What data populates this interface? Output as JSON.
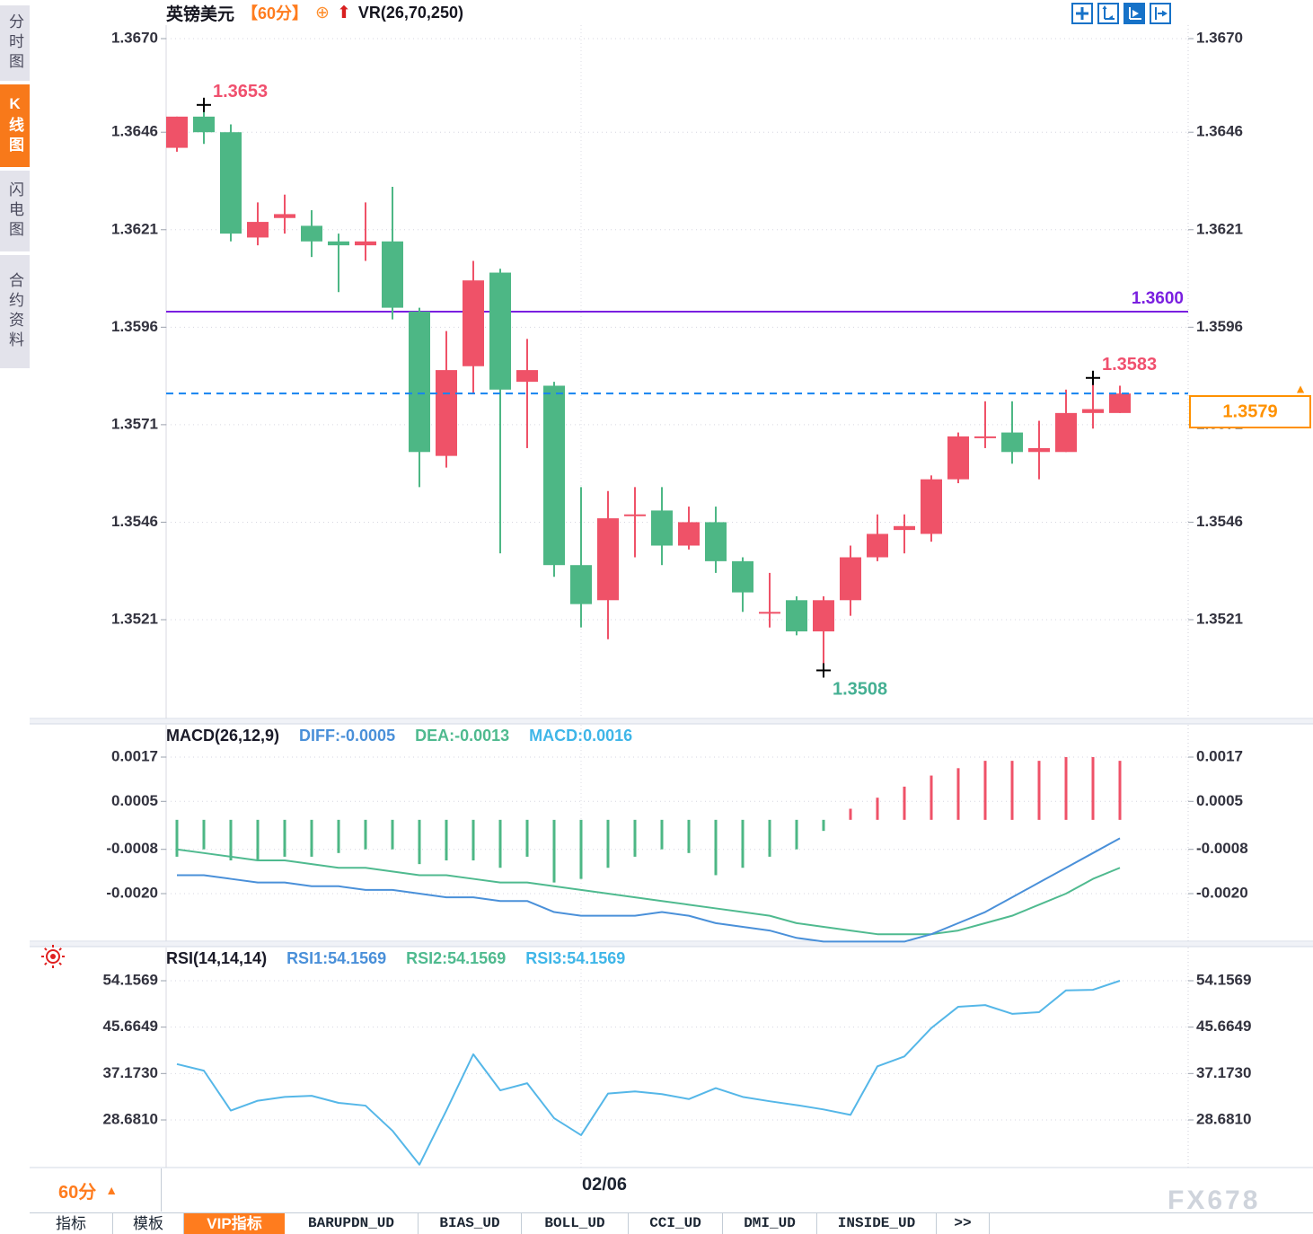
{
  "header": {
    "symbol": "英镑美元",
    "period": "【60分】",
    "indicator_label": "VR(26,70,250)"
  },
  "sidebar": {
    "items": [
      {
        "label": "分时图",
        "active": false
      },
      {
        "label": "K线图",
        "active": true
      },
      {
        "label": "闪电图",
        "active": false
      },
      {
        "label": "合约资料",
        "active": false
      }
    ]
  },
  "toolbar": {
    "icons": [
      "crosshair-icon",
      "axis-scale-icon",
      "auto-scale-icon",
      "pan-right-icon"
    ]
  },
  "panels": {
    "macd": {
      "title": "MACD(26,12,9)",
      "diff_label": "DIFF:-0.0005",
      "dea_label": "DEA:-0.0013",
      "macd_label": "MACD:0.0016"
    },
    "rsi": {
      "title": "RSI(14,14,14)",
      "rsi1_label": "RSI1:54.1569",
      "rsi2_label": "RSI2:54.1569",
      "rsi3_label": "RSI3:54.1569"
    }
  },
  "footer": {
    "period_button": "60分",
    "date_label": "02/06",
    "tabs": [
      {
        "label": "指标",
        "active": false,
        "mono": false
      },
      {
        "label": "模板",
        "active": false,
        "mono": false
      },
      {
        "label": "VIP指标",
        "active": true,
        "mono": false
      },
      {
        "label": "BARUPDN_UD",
        "active": false,
        "mono": true
      },
      {
        "label": "BIAS_UD",
        "active": false,
        "mono": true
      },
      {
        "label": "BOLL_UD",
        "active": false,
        "mono": true
      },
      {
        "label": "CCI_UD",
        "active": false,
        "mono": true
      },
      {
        "label": "DMI_UD",
        "active": false,
        "mono": true
      },
      {
        "label": "INSIDE_UD",
        "active": false,
        "mono": true
      },
      {
        "label": ">>",
        "active": false,
        "mono": true
      }
    ]
  },
  "watermark": "FX678",
  "colors": {
    "up": "#ef5268",
    "down": "#4db785",
    "accent_orange": "#ff7c1e",
    "purple_line": "#7a1fe0",
    "dashed_blue": "#1584f0",
    "diff_blue": "#4a90d9",
    "dea_green": "#4fba8f",
    "macd_cyan": "#3fb6e8",
    "rsi_line": "#55b7e8",
    "tag_orange": "#ff9100",
    "toolbar_blue": "#1672c8",
    "marker_red": "#f0506e",
    "marker_green": "#45b093"
  },
  "chart_data": [
    {
      "type": "candlestick",
      "title": "英镑美元 60分",
      "y_ticks": [
        1.367,
        1.3646,
        1.3621,
        1.3596,
        1.3571,
        1.3546,
        1.3521
      ],
      "ylim": [
        1.367,
        1.3521
      ],
      "candles_ochl": [
        [
          1.3642,
          1.365,
          1.365,
          1.3641
        ],
        [
          1.365,
          1.3646,
          1.3653,
          1.3643
        ],
        [
          1.3646,
          1.362,
          1.3648,
          1.3618
        ],
        [
          1.3619,
          1.3623,
          1.3628,
          1.3617
        ],
        [
          1.3624,
          1.3625,
          1.363,
          1.362
        ],
        [
          1.3622,
          1.3618,
          1.3626,
          1.3614
        ],
        [
          1.3618,
          1.3617,
          1.362,
          1.3605
        ],
        [
          1.3617,
          1.3618,
          1.3628,
          1.3613
        ],
        [
          1.3618,
          1.3601,
          1.3632,
          1.3598
        ],
        [
          1.36,
          1.3564,
          1.3601,
          1.3555
        ],
        [
          1.3563,
          1.3585,
          1.3595,
          1.356
        ],
        [
          1.3586,
          1.3608,
          1.3613,
          1.3579
        ],
        [
          1.361,
          1.358,
          1.3611,
          1.3538
        ],
        [
          1.3582,
          1.3585,
          1.3593,
          1.3565
        ],
        [
          1.3581,
          1.3535,
          1.3582,
          1.3532
        ],
        [
          1.3535,
          1.3525,
          1.3555,
          1.3519
        ],
        [
          1.3526,
          1.3547,
          1.3554,
          1.3516
        ],
        [
          1.3548,
          1.3548,
          1.3555,
          1.3537
        ],
        [
          1.3549,
          1.354,
          1.3555,
          1.3535
        ],
        [
          1.354,
          1.3546,
          1.355,
          1.3539
        ],
        [
          1.3546,
          1.3536,
          1.355,
          1.3533
        ],
        [
          1.3536,
          1.3528,
          1.3537,
          1.3523
        ],
        [
          1.3523,
          1.3523,
          1.3533,
          1.3519
        ],
        [
          1.3526,
          1.3518,
          1.3527,
          1.3517
        ],
        [
          1.3518,
          1.3526,
          1.3527,
          1.3508
        ],
        [
          1.3526,
          1.3537,
          1.354,
          1.3522
        ],
        [
          1.3537,
          1.3543,
          1.3548,
          1.3536
        ],
        [
          1.3544,
          1.3545,
          1.3548,
          1.3538
        ],
        [
          1.3543,
          1.3557,
          1.3558,
          1.3541
        ],
        [
          1.3557,
          1.3568,
          1.3569,
          1.3556
        ],
        [
          1.3568,
          1.3568,
          1.3577,
          1.3565
        ],
        [
          1.3569,
          1.3564,
          1.3577,
          1.3561
        ],
        [
          1.3564,
          1.3565,
          1.3572,
          1.3557
        ],
        [
          1.3564,
          1.3574,
          1.358,
          1.3564
        ],
        [
          1.3574,
          1.3575,
          1.3583,
          1.357
        ],
        [
          1.3574,
          1.3579,
          1.3581,
          1.3574
        ]
      ],
      "markers": [
        {
          "index": 1,
          "at": "high",
          "label": "1.3653",
          "color": "#f0506e"
        },
        {
          "index": 24,
          "at": "low",
          "label": "1.3508",
          "color": "#45b093"
        },
        {
          "index": 34,
          "at": "high",
          "label": "1.3583",
          "color": "#f0506e"
        }
      ],
      "hlines": [
        {
          "price": 1.36,
          "label": "1.3600",
          "style": "solid",
          "color": "#7a1fe0"
        },
        {
          "price": 1.3579,
          "label": "",
          "style": "dashed",
          "color": "#1584f0"
        }
      ],
      "price_tag": "1.3579",
      "x_label": "02/06",
      "session_index": 15
    },
    {
      "type": "bar",
      "name": "MACD",
      "y_ticks": [
        0.0017,
        0.0005,
        -0.0008,
        -0.002
      ],
      "histogram": [
        -0.001,
        -0.0008,
        -0.0011,
        -0.0011,
        -0.001,
        -0.001,
        -0.0009,
        -0.0008,
        -0.0008,
        -0.0012,
        -0.0011,
        -0.0011,
        -0.0013,
        -0.001,
        -0.0017,
        -0.0016,
        -0.0013,
        -0.001,
        -0.0008,
        -0.0009,
        -0.0015,
        -0.0013,
        -0.001,
        -0.0008,
        -0.0003,
        0.0003,
        0.0006,
        0.0009,
        0.0012,
        0.0014,
        0.0016,
        0.0016,
        0.0016,
        0.0017,
        0.0017,
        0.0016
      ],
      "diff": [
        -0.0015,
        -0.0015,
        -0.0016,
        -0.0017,
        -0.0017,
        -0.0018,
        -0.0018,
        -0.0019,
        -0.0019,
        -0.002,
        -0.0021,
        -0.0021,
        -0.0022,
        -0.0022,
        -0.0025,
        -0.0026,
        -0.0026,
        -0.0026,
        -0.0025,
        -0.0026,
        -0.0028,
        -0.0029,
        -0.003,
        -0.0032,
        -0.0033,
        -0.0033,
        -0.0033,
        -0.0033,
        -0.0031,
        -0.0028,
        -0.0025,
        -0.0021,
        -0.0017,
        -0.0013,
        -0.0009,
        -0.0005
      ],
      "dea": [
        -0.0008,
        -0.0009,
        -0.001,
        -0.0011,
        -0.0011,
        -0.0012,
        -0.0013,
        -0.0013,
        -0.0014,
        -0.0015,
        -0.0015,
        -0.0016,
        -0.0017,
        -0.0017,
        -0.0018,
        -0.0019,
        -0.002,
        -0.0021,
        -0.0022,
        -0.0023,
        -0.0024,
        -0.0025,
        -0.0026,
        -0.0028,
        -0.0029,
        -0.003,
        -0.0031,
        -0.0031,
        -0.0031,
        -0.003,
        -0.0028,
        -0.0026,
        -0.0023,
        -0.002,
        -0.0016,
        -0.0013
      ]
    },
    {
      "type": "line",
      "name": "RSI",
      "y_ticks": [
        54.1569,
        45.6649,
        37.173,
        28.681
      ],
      "values": [
        38.9,
        37.7,
        30.4,
        32.2,
        32.9,
        33.1,
        31.8,
        31.3,
        26.7,
        20.5,
        30.4,
        40.7,
        34.1,
        35.4,
        29.0,
        25.9,
        33.5,
        33.9,
        33.4,
        32.5,
        34.5,
        32.9,
        32.1,
        31.4,
        30.6,
        29.6,
        38.5,
        40.3,
        45.5,
        49.4,
        49.7,
        48.1,
        48.4,
        52.4,
        52.5,
        54.1569
      ]
    }
  ]
}
